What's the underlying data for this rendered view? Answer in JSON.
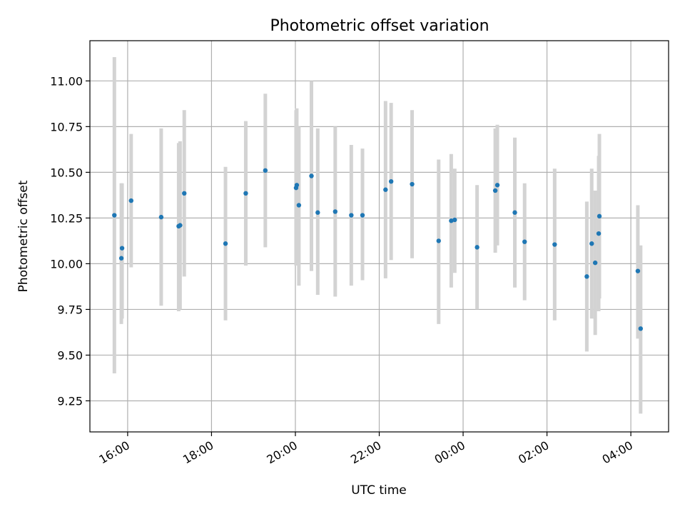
{
  "chart_data": {
    "type": "scatter",
    "title": "Photometric offset variation",
    "xlabel": "UTC time",
    "ylabel": "Photometric offset",
    "x_ticks": [
      "16:00",
      "18:00",
      "20:00",
      "22:00",
      "00:00",
      "02:00",
      "04:00"
    ],
    "y_ticks": [
      "9.25",
      "9.50",
      "9.75",
      "10.00",
      "10.25",
      "10.50",
      "10.75",
      "11.00"
    ],
    "xlim_hours": [
      15.1,
      28.9
    ],
    "ylim": [
      9.08,
      11.22
    ],
    "grid": true,
    "point_color": "#1f77b4",
    "errorbar_color": "#d3d3d3",
    "points": [
      {
        "t": "15:41",
        "y": 10.265,
        "lo": 9.4,
        "hi": 11.13
      },
      {
        "t": "15:51",
        "y": 10.03,
        "lo": 9.67,
        "hi": 10.44
      },
      {
        "t": "15:52",
        "y": 10.085,
        "lo": 9.7,
        "hi": 10.44
      },
      {
        "t": "16:05",
        "y": 10.345,
        "lo": 9.98,
        "hi": 10.71
      },
      {
        "t": "16:48",
        "y": 10.255,
        "lo": 9.77,
        "hi": 10.74
      },
      {
        "t": "17:13",
        "y": 10.205,
        "lo": 9.74,
        "hi": 10.66
      },
      {
        "t": "17:15",
        "y": 10.21,
        "lo": 9.75,
        "hi": 10.67
      },
      {
        "t": "17:21",
        "y": 10.385,
        "lo": 9.93,
        "hi": 10.84
      },
      {
        "t": "18:20",
        "y": 10.11,
        "lo": 9.69,
        "hi": 10.53
      },
      {
        "t": "18:49",
        "y": 10.385,
        "lo": 9.99,
        "hi": 10.78
      },
      {
        "t": "19:17",
        "y": 10.51,
        "lo": 10.09,
        "hi": 10.93
      },
      {
        "t": "20:01",
        "y": 10.415,
        "lo": 9.99,
        "hi": 10.84
      },
      {
        "t": "20:02",
        "y": 10.43,
        "lo": 10.0,
        "hi": 10.85
      },
      {
        "t": "20:05",
        "y": 10.32,
        "lo": 9.88,
        "hi": 10.75
      },
      {
        "t": "20:23",
        "y": 10.48,
        "lo": 9.96,
        "hi": 11.0
      },
      {
        "t": "20:32",
        "y": 10.28,
        "lo": 9.83,
        "hi": 10.74
      },
      {
        "t": "20:57",
        "y": 10.285,
        "lo": 9.82,
        "hi": 10.75
      },
      {
        "t": "21:20",
        "y": 10.265,
        "lo": 9.88,
        "hi": 10.65
      },
      {
        "t": "21:36",
        "y": 10.265,
        "lo": 9.91,
        "hi": 10.63
      },
      {
        "t": "22:09",
        "y": 10.405,
        "lo": 9.92,
        "hi": 10.89
      },
      {
        "t": "22:17",
        "y": 10.45,
        "lo": 10.02,
        "hi": 10.88
      },
      {
        "t": "22:47",
        "y": 10.435,
        "lo": 10.03,
        "hi": 10.84
      },
      {
        "t": "23:25",
        "y": 10.125,
        "lo": 9.67,
        "hi": 10.57
      },
      {
        "t": "23:43",
        "y": 10.235,
        "lo": 9.87,
        "hi": 10.6
      },
      {
        "t": "23:48",
        "y": 10.24,
        "lo": 9.95,
        "hi": 10.52
      },
      {
        "t": "00:20",
        "y": 10.09,
        "lo": 9.75,
        "hi": 10.43
      },
      {
        "t": "00:46",
        "y": 10.4,
        "lo": 10.06,
        "hi": 10.74
      },
      {
        "t": "00:49",
        "y": 10.43,
        "lo": 10.1,
        "hi": 10.76
      },
      {
        "t": "01:14",
        "y": 10.28,
        "lo": 9.87,
        "hi": 10.69
      },
      {
        "t": "01:28",
        "y": 10.12,
        "lo": 9.8,
        "hi": 10.44
      },
      {
        "t": "02:11",
        "y": 10.105,
        "lo": 9.69,
        "hi": 10.52
      },
      {
        "t": "02:57",
        "y": 9.93,
        "lo": 9.52,
        "hi": 10.34
      },
      {
        "t": "03:04",
        "y": 10.11,
        "lo": 9.7,
        "hi": 10.52
      },
      {
        "t": "03:09",
        "y": 10.005,
        "lo": 9.61,
        "hi": 10.4
      },
      {
        "t": "03:14",
        "y": 10.165,
        "lo": 9.74,
        "hi": 10.59
      },
      {
        "t": "03:15",
        "y": 10.26,
        "lo": 9.81,
        "hi": 10.71
      },
      {
        "t": "04:10",
        "y": 9.96,
        "lo": 9.59,
        "hi": 10.32
      },
      {
        "t": "04:14",
        "y": 9.645,
        "lo": 9.18,
        "hi": 10.1
      }
    ]
  }
}
